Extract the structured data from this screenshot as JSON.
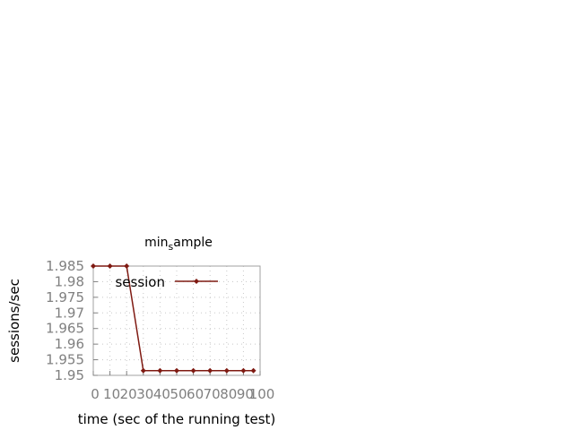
{
  "chart_data": {
    "type": "line",
    "title_main": "min",
    "title_sub": "s",
    "title_rest": "ample",
    "xlabel": "time (sec of the running test)",
    "ylabel": "sessions/sec",
    "xlim": [
      0,
      100
    ],
    "ylim": [
      1.95,
      1.985
    ],
    "xticks": [
      0,
      10,
      20,
      30,
      40,
      50,
      60,
      70,
      80,
      90,
      100
    ],
    "xtick_labels": [
      "0",
      "10",
      "20",
      "30",
      "40",
      "50",
      "60",
      "70",
      "80",
      "90",
      "100"
    ],
    "yticks": [
      1.95,
      1.955,
      1.96,
      1.965,
      1.97,
      1.975,
      1.98,
      1.985
    ],
    "ytick_labels": [
      "1.95",
      "1.955",
      "1.96",
      "1.965",
      "1.97",
      "1.975",
      "1.98",
      "1.985"
    ],
    "grid": true,
    "legend_position": "top-right",
    "series": [
      {
        "name": "session",
        "color": "#7f1a12",
        "x": [
          0,
          10,
          20,
          30,
          40,
          50,
          60,
          70,
          80,
          90,
          96
        ],
        "y": [
          1.985,
          1.985,
          1.985,
          1.9515,
          1.9515,
          1.9515,
          1.9515,
          1.9515,
          1.9515,
          1.9515,
          1.9515
        ]
      }
    ]
  }
}
